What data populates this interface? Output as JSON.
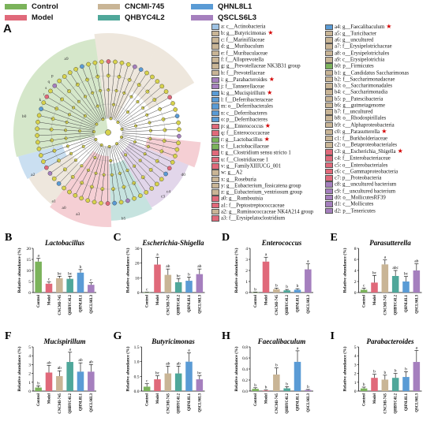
{
  "legend": {
    "items": [
      {
        "label": "Control",
        "color": "#7bb35b"
      },
      {
        "label": "CNCMI-745",
        "color": "#c9b596"
      },
      {
        "label": "QHNL8L1",
        "color": "#5a9bd5"
      },
      {
        "label": "Model",
        "color": "#e0697a"
      },
      {
        "label": "QHBYC4L2",
        "color": "#4fa79a"
      },
      {
        "label": "QSCLS6L3",
        "color": "#a57fbe"
      }
    ]
  },
  "panel_a": {
    "letter": "A",
    "col1": [
      {
        "id": "a",
        "text": "a: c__Actinobacteria",
        "color": "#9fc3e4",
        "star": false
      },
      {
        "id": "b",
        "text": "b: g__Butyricimonas",
        "color": "#c9b596",
        "star": true
      },
      {
        "id": "c",
        "text": "c: f__Marinifilaceae",
        "color": "#c9b596",
        "star": false
      },
      {
        "id": "d",
        "text": "d: g__Muribaculum",
        "color": "#c9b596",
        "star": false
      },
      {
        "id": "e",
        "text": "e: f__Muribaculaceae",
        "color": "#c9b596",
        "star": false
      },
      {
        "id": "f",
        "text": "f: f__Alloprevotella",
        "color": "#c9b596",
        "star": false
      },
      {
        "id": "g",
        "text": "g: g__Prevotellaceae NK3B31 group",
        "color": "#c9b596",
        "star": false
      },
      {
        "id": "h",
        "text": "h: f__Prevotellaceae",
        "color": "#c9b596",
        "star": false
      },
      {
        "id": "i",
        "text": "i: g__Parabacteroides",
        "color": "#a57fbe",
        "star": true
      },
      {
        "id": "j",
        "text": "j: f__Tannerellaceae",
        "color": "#a57fbe",
        "star": false
      },
      {
        "id": "k",
        "text": "k: g__Mucispirillum",
        "color": "#5a9bd5",
        "star": true
      },
      {
        "id": "l",
        "text": "l: f__Deferribacteraceae",
        "color": "#5a9bd5",
        "star": false
      },
      {
        "id": "m",
        "text": "m: o__Deferribacterales",
        "color": "#5a9bd5",
        "star": false
      },
      {
        "id": "n",
        "text": "n: c__Deferribacteres",
        "color": "#5a9bd5",
        "star": false
      },
      {
        "id": "o",
        "text": "o: p__Deferribacteres",
        "color": "#5a9bd5",
        "star": false
      },
      {
        "id": "p",
        "text": "p: g__Enterococcus",
        "color": "#e0697a",
        "star": true
      },
      {
        "id": "q",
        "text": "q: f__Enterococcaceae",
        "color": "#e0697a",
        "star": false
      },
      {
        "id": "r",
        "text": "r: g__Lactobacillus",
        "color": "#7bb35b",
        "star": true
      },
      {
        "id": "s",
        "text": "s: f__Lactobacillaceae",
        "color": "#7bb35b",
        "star": false
      },
      {
        "id": "t",
        "text": "t: g__Clostridium sensu stricto 1",
        "color": "#e0697a",
        "star": false
      },
      {
        "id": "u",
        "text": "u: f__Clostridiaceae 1",
        "color": "#e0697a",
        "star": false
      },
      {
        "id": "v",
        "text": "v: g__FamilyXIIIUCG_001",
        "color": "#e0697a",
        "star": false
      },
      {
        "id": "w",
        "text": "w: g__A2",
        "color": "#c9b596",
        "star": false
      },
      {
        "id": "x",
        "text": "x: g__Roseburia",
        "color": "#c9b596",
        "star": false
      },
      {
        "id": "y",
        "text": "y: g__Eubacterium_fissicatena group",
        "color": "#c9b596",
        "star": false
      },
      {
        "id": "z",
        "text": "z: g__Eubacterium_ventriosum group",
        "color": "#c9b596",
        "star": false
      },
      {
        "id": "a0",
        "text": "a0: g__Romboutsia",
        "color": "#e0697a",
        "star": false
      },
      {
        "id": "a1",
        "text": "a1: f__Peptostreptococcaceae",
        "color": "#e0697a",
        "star": false
      },
      {
        "id": "a2",
        "text": "a2: g__Ruminococcaceae NK4A214 group",
        "color": "#c9b596",
        "star": false
      },
      {
        "id": "a3",
        "text": "a3: f__Erysipelatoclostridium",
        "color": "#e0697a",
        "star": false
      }
    ],
    "col2": [
      {
        "id": "a4",
        "text": "a4: g__Faecalibaculum",
        "color": "#5a9bd5",
        "star": true
      },
      {
        "id": "a5",
        "text": "a5: g__Turicibacter",
        "color": "#c9b596",
        "star": false
      },
      {
        "id": "a6",
        "text": "a6: g__uncultured",
        "color": "#c9b596",
        "star": false
      },
      {
        "id": "a7",
        "text": "a7: f__Erysipelotrichaceae",
        "color": "#c9b596",
        "star": false
      },
      {
        "id": "a8",
        "text": "a8: o__Erysipelotrichales",
        "color": "#c9b596",
        "star": false
      },
      {
        "id": "a9",
        "text": "a9: c__Erysipelotrichia",
        "color": "#c9b596",
        "star": false
      },
      {
        "id": "b0",
        "text": "b0: p__Firmicutes",
        "color": "#7bb35b",
        "star": false
      },
      {
        "id": "b1",
        "text": "b1: g__Candidatus Saccharimonas",
        "color": "#c9b596",
        "star": false
      },
      {
        "id": "b2",
        "text": "b2: f__Saccharimonadaceae",
        "color": "#c9b596",
        "star": false
      },
      {
        "id": "b3",
        "text": "b3: o__Saccharimonadales",
        "color": "#c9b596",
        "star": false
      },
      {
        "id": "b4",
        "text": "b4: c__Saccharimonadia",
        "color": "#c9b596",
        "star": false
      },
      {
        "id": "b5",
        "text": "b5: p__Patescibacteria",
        "color": "#c9b596",
        "star": false
      },
      {
        "id": "b6",
        "text": "b6: g__gutmetagenome",
        "color": "#c9b596",
        "star": false
      },
      {
        "id": "b7",
        "text": "b7: f__uncultured",
        "color": "#c9b596",
        "star": false
      },
      {
        "id": "b8",
        "text": "b8: o__Rhodospirillales",
        "color": "#c9b596",
        "star": false
      },
      {
        "id": "b9",
        "text": "b9: c__Alphaproteobacteria",
        "color": "#c9b596",
        "star": false
      },
      {
        "id": "c0",
        "text": "c0: g__Parasutterella",
        "color": "#c9b596",
        "star": true
      },
      {
        "id": "c1",
        "text": "c1: f__Burkholderiaceae",
        "color": "#c9b596",
        "star": false
      },
      {
        "id": "c2",
        "text": "c2: o__Betaproteobacteriales",
        "color": "#c9b596",
        "star": false
      },
      {
        "id": "c3",
        "text": "c3: g__Escherichia_Shigella",
        "color": "#e0697a",
        "star": true
      },
      {
        "id": "c4",
        "text": "c4: f__Enterobacteriaceae",
        "color": "#e0697a",
        "star": false
      },
      {
        "id": "c5",
        "text": "c5: o__Enterobacteriales",
        "color": "#e0697a",
        "star": false
      },
      {
        "id": "c6",
        "text": "c6: c__Gammaproteobacteria",
        "color": "#e0697a",
        "star": false
      },
      {
        "id": "c7",
        "text": "c7: p__Proteobacteria",
        "color": "#e0697a",
        "star": false
      },
      {
        "id": "c8",
        "text": "c8: g__uncultured bacterium",
        "color": "#a57fbe",
        "star": false
      },
      {
        "id": "c9",
        "text": "c9: f__uncultured bacterium",
        "color": "#a57fbe",
        "star": false
      },
      {
        "id": "d0",
        "text": "d0: o__MollicutesRF39",
        "color": "#a57fbe",
        "star": false
      },
      {
        "id": "d1",
        "text": "d1: c__Mollicutes",
        "color": "#a57fbe",
        "star": false
      },
      {
        "id": "d2",
        "text": "d2: p__Tenericutes",
        "color": "#a57fbe",
        "star": false
      }
    ]
  },
  "chart_data": [
    {
      "type": "bar",
      "panel": "B",
      "title": "Lactobacillus",
      "ylabel": "Relative abundance (%)",
      "ylim": [
        0,
        20
      ],
      "yticks": [
        0,
        5,
        10,
        15,
        20
      ],
      "categories": [
        "Control",
        "Model",
        "CNCMI-745",
        "QHBYC4L2",
        "QHNL8L1",
        "QSCLS6L3"
      ],
      "values": [
        14,
        4,
        6.5,
        6.2,
        9,
        3.5
      ],
      "errors": [
        1.5,
        0.8,
        0.9,
        1.2,
        1.4,
        0.9
      ],
      "letters": [
        "a",
        "c",
        "bc",
        "bc",
        "b",
        "c"
      ]
    },
    {
      "type": "bar",
      "panel": "C",
      "title": "Escherichia-Shigella",
      "ylabel": "Relative abundance (%)",
      "ylim": [
        0,
        30
      ],
      "yticks": [
        0,
        10,
        20,
        30
      ],
      "categories": [
        "Control",
        "Model",
        "CNCMI-745",
        "QHBYC4L2",
        "QHNL8L1",
        "QSCLS6L3"
      ],
      "values": [
        0.1,
        19,
        12,
        7,
        8,
        12.5
      ],
      "errors": [
        0.1,
        5,
        4,
        2.5,
        2.5,
        3.5
      ],
      "letters": [
        "c",
        "a",
        "ab",
        "bc",
        "b",
        "ab"
      ]
    },
    {
      "type": "bar",
      "panel": "D",
      "title": "Enterococcus",
      "ylabel": "Relative abundance (%)",
      "ylim": [
        0,
        4
      ],
      "yticks": [
        0,
        1,
        2,
        3,
        4
      ],
      "categories": [
        "Control",
        "Model",
        "CNCMI-745",
        "QHBYC4L2",
        "QHNL8L1",
        "QSCLS6L3"
      ],
      "values": [
        0.02,
        2.8,
        0.3,
        0.2,
        0.25,
        2.1
      ],
      "errors": [
        0.02,
        0.4,
        0.1,
        0.08,
        0.1,
        0.5
      ],
      "letters": [
        "b",
        "a",
        "b",
        "b",
        "b",
        "a"
      ]
    },
    {
      "type": "bar",
      "panel": "E",
      "title": "Parasutterella",
      "ylabel": "Relative abundance (%)",
      "ylim": [
        0,
        8
      ],
      "yticks": [
        0,
        2,
        4,
        6,
        8
      ],
      "categories": [
        "Control",
        "Model",
        "CNCMI-745",
        "QHBYC4L2",
        "QHNL8L1",
        "QSCLS6L3"
      ],
      "values": [
        0.5,
        1.8,
        5.1,
        3,
        2,
        4
      ],
      "errors": [
        0.3,
        1.3,
        0.8,
        1,
        0.9,
        1.2
      ],
      "letters": [
        "c",
        "bc",
        "a",
        "abc",
        "bc",
        "ab"
      ]
    },
    {
      "type": "bar",
      "panel": "F",
      "title": "Mucispirillum",
      "ylabel": "Relative abundance (%)",
      "ylim": [
        0,
        5
      ],
      "yticks": [
        0,
        1,
        2,
        3,
        4,
        5
      ],
      "categories": [
        "Control",
        "Model",
        "CNCMI-745",
        "QHBYC4L2",
        "QHNL8L1",
        "QSCLS6L3"
      ],
      "values": [
        0.4,
        2.1,
        1.7,
        3.3,
        2.2,
        2.2
      ],
      "errors": [
        0.2,
        0.8,
        0.6,
        1.1,
        1,
        0.8
      ],
      "letters": [
        "b",
        "ab",
        "ab",
        "a",
        "ab",
        "ab"
      ]
    },
    {
      "type": "bar",
      "panel": "G",
      "title": "Butyricimonas",
      "ylabel": "Relative abundance (%)",
      "ylim": [
        0,
        1.5
      ],
      "yticks": [
        0,
        0.5,
        1.0,
        1.5
      ],
      "categories": [
        "Control",
        "Model",
        "CNCMI-745",
        "QHBYC4L2",
        "QHNL8L1",
        "QSCLS6L3"
      ],
      "values": [
        0.15,
        0.4,
        0.6,
        0.6,
        1.0,
        0.4
      ],
      "errors": [
        0.1,
        0.12,
        0.25,
        0.25,
        0.3,
        0.12
      ],
      "letters": [
        "c",
        "bc",
        "ab",
        "ab",
        "a",
        "bc"
      ]
    },
    {
      "type": "bar",
      "panel": "H",
      "title": "Faecalibaculum",
      "ylabel": "Relative abundance (%)",
      "ylim": [
        0,
        0.8
      ],
      "yticks": [
        0,
        0.2,
        0.4,
        0.6,
        0.8
      ],
      "categories": [
        "Control",
        "Model",
        "CNCMI-745",
        "QHBYC4L2",
        "QHNL8L1",
        "QSCLS6L3"
      ],
      "values": [
        0.04,
        0.01,
        0.3,
        0.05,
        0.53,
        0.02
      ],
      "errors": [
        0.02,
        0.01,
        0.12,
        0.03,
        0.2,
        0.01
      ],
      "letters": [
        "b",
        "b",
        "b",
        "b",
        "a",
        "b"
      ]
    },
    {
      "type": "bar",
      "panel": "I",
      "title": "Parabacteroides",
      "ylabel": "Relative abundance (%)",
      "ylim": [
        0,
        5
      ],
      "yticks": [
        0,
        1,
        2,
        3,
        4,
        5
      ],
      "categories": [
        "Control",
        "Model",
        "CNCMI-745",
        "QHBYC4L2",
        "QHNL8L1",
        "QSCLS6L3"
      ],
      "values": [
        0.3,
        1.5,
        1.3,
        1.5,
        1.6,
        3.3
      ],
      "errors": [
        0.15,
        0.4,
        0.5,
        0.5,
        0.6,
        1.3
      ],
      "letters": [
        "b",
        "b",
        "b",
        "b",
        "b",
        "a"
      ]
    }
  ]
}
